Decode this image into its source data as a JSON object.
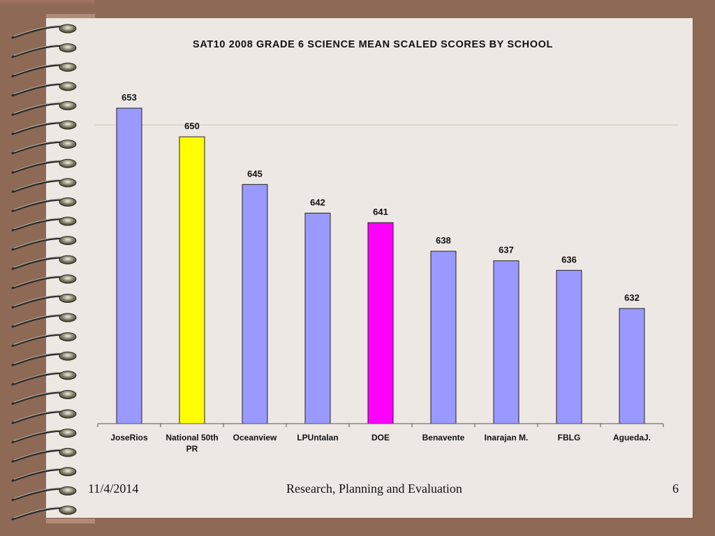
{
  "chart_data": {
    "type": "bar",
    "title": "SAT10 2008 GRADE 6 SCIENCE MEAN SCALED SCORES BY SCHOOL",
    "categories": [
      "JoseRios",
      "National 50th PR",
      "Oceanview",
      "LPUntalan",
      "DOE",
      "Benavente",
      "Inarajan M.",
      "FBLG",
      "AguedaJ."
    ],
    "values": [
      653,
      650,
      645,
      642,
      641,
      638,
      637,
      636,
      632
    ],
    "colors": [
      "#9999ff",
      "#ffff00",
      "#9999ff",
      "#9999ff",
      "#ff00ff",
      "#9999ff",
      "#9999ff",
      "#9999ff",
      "#9999ff"
    ],
    "ylim": [
      620,
      655
    ],
    "reference_line": 650,
    "grid": false,
    "legend": "none",
    "data_labels": [
      "653",
      "650",
      "645",
      "642",
      "641",
      "638",
      "637",
      "636",
      "632"
    ]
  },
  "footer": {
    "date": "11/4/2014",
    "center": "Research, Planning and Evaluation",
    "page": "6"
  },
  "colors": {
    "background": "#8e6a56",
    "paper": "#ede8e4",
    "bar_default": "#9999ff",
    "bar_reference": "#ffff00",
    "bar_state": "#ff00ff"
  },
  "decor": {
    "spiral_icon": "spiral-binding-icon"
  }
}
